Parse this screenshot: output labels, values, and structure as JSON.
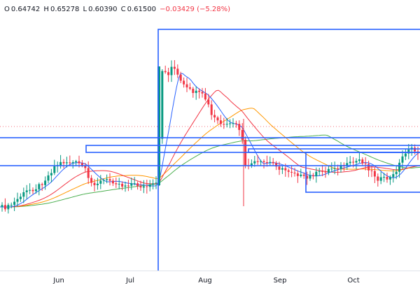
{
  "legend": {
    "open_label": "O",
    "open": "0.64742",
    "high_label": "H",
    "high": "0.65278",
    "low_label": "L",
    "low": "0.60390",
    "close_label": "C",
    "close": "0.61500",
    "change": "−0.03429 (−5.28%)"
  },
  "time_axis": {
    "ticks": [
      "Jun",
      "Jul",
      "Aug",
      "Sep",
      "Oct"
    ]
  },
  "colors": {
    "up": "#089981",
    "down": "#f23645",
    "drawing": "#2962ff",
    "ma_fast": "#2962ff",
    "ma_medium": "#f23645",
    "ma_slow": "#ff9800",
    "ma_long": "#4caf50",
    "dotted_price_line": "#f23645"
  },
  "icons": {
    "drawings": "rectangle-drawing-tool-shapes"
  }
}
